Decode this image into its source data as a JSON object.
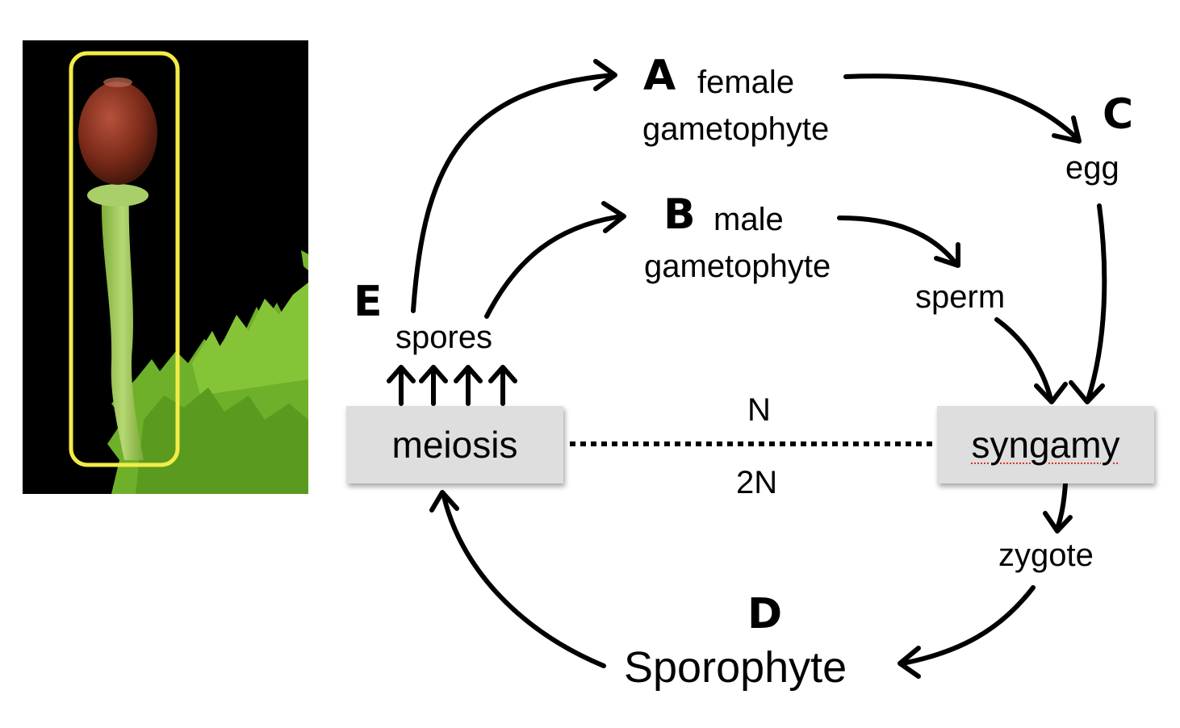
{
  "letters": {
    "a": "A",
    "b": "B",
    "c": "C",
    "d": "D",
    "e": "E"
  },
  "labels": {
    "female": "female",
    "female_gametophyte": "gametophyte",
    "male": "male",
    "male_gametophyte": "gametophyte",
    "egg": "egg",
    "sperm": "sperm",
    "spores": "spores",
    "zygote": "zygote",
    "sporophyte": "Sporophyte",
    "n": "N",
    "two_n": "2N"
  },
  "boxes": {
    "meiosis": "meiosis",
    "syngamy": "syngamy"
  },
  "photo": {
    "subject": "moss sporophyte capsule on stalk",
    "highlight_color": "#f3ec48"
  },
  "colors": {
    "box_fill": "#dedede",
    "arrow": "#000000",
    "spellcheck": "#e0322b"
  }
}
